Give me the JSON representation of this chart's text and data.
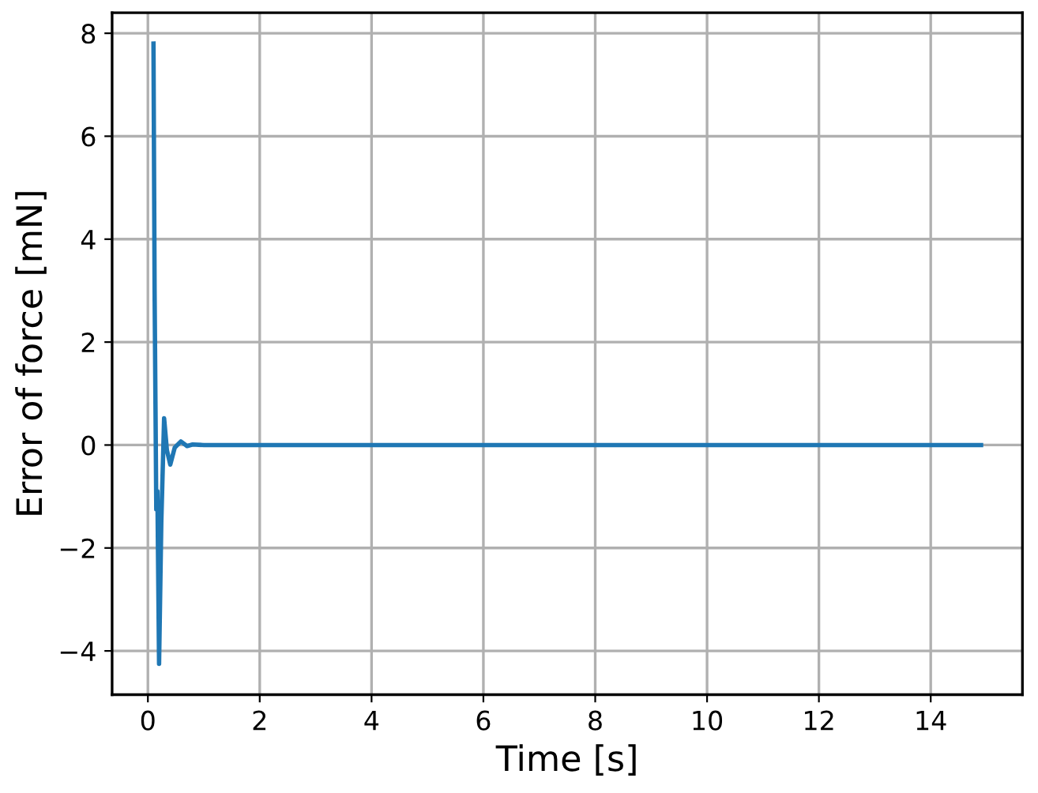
{
  "chart_data": {
    "type": "line",
    "xlabel": "Time [s]",
    "ylabel": "Error of force [mN]",
    "xlim": [
      -0.64,
      15.64
    ],
    "ylim": [
      -4.85,
      8.4
    ],
    "xticks": [
      0,
      2,
      4,
      6,
      8,
      10,
      12,
      14
    ],
    "yticks": [
      {
        "value": -4,
        "label": "−4"
      },
      {
        "value": -2,
        "label": "−2"
      },
      0,
      2,
      4,
      6,
      8
    ],
    "grid": true,
    "series": [
      {
        "color": "#1f77b4",
        "x": [
          0.1,
          0.12,
          0.15,
          0.17,
          0.2,
          0.24,
          0.29,
          0.34,
          0.4,
          0.48,
          0.59,
          0.7,
          0.8,
          1.0,
          2.0,
          4.0,
          6.0,
          8.0,
          10.0,
          12.0,
          14.0,
          14.9
        ],
        "values": [
          7.8,
          3.0,
          -1.25,
          -0.9,
          -4.25,
          -1.5,
          0.52,
          -0.1,
          -0.38,
          -0.05,
          0.07,
          -0.02,
          0.01,
          0.0,
          0.0,
          0.0,
          0.0,
          0.0,
          0.0,
          0.0,
          0.0,
          0.0
        ]
      }
    ]
  }
}
